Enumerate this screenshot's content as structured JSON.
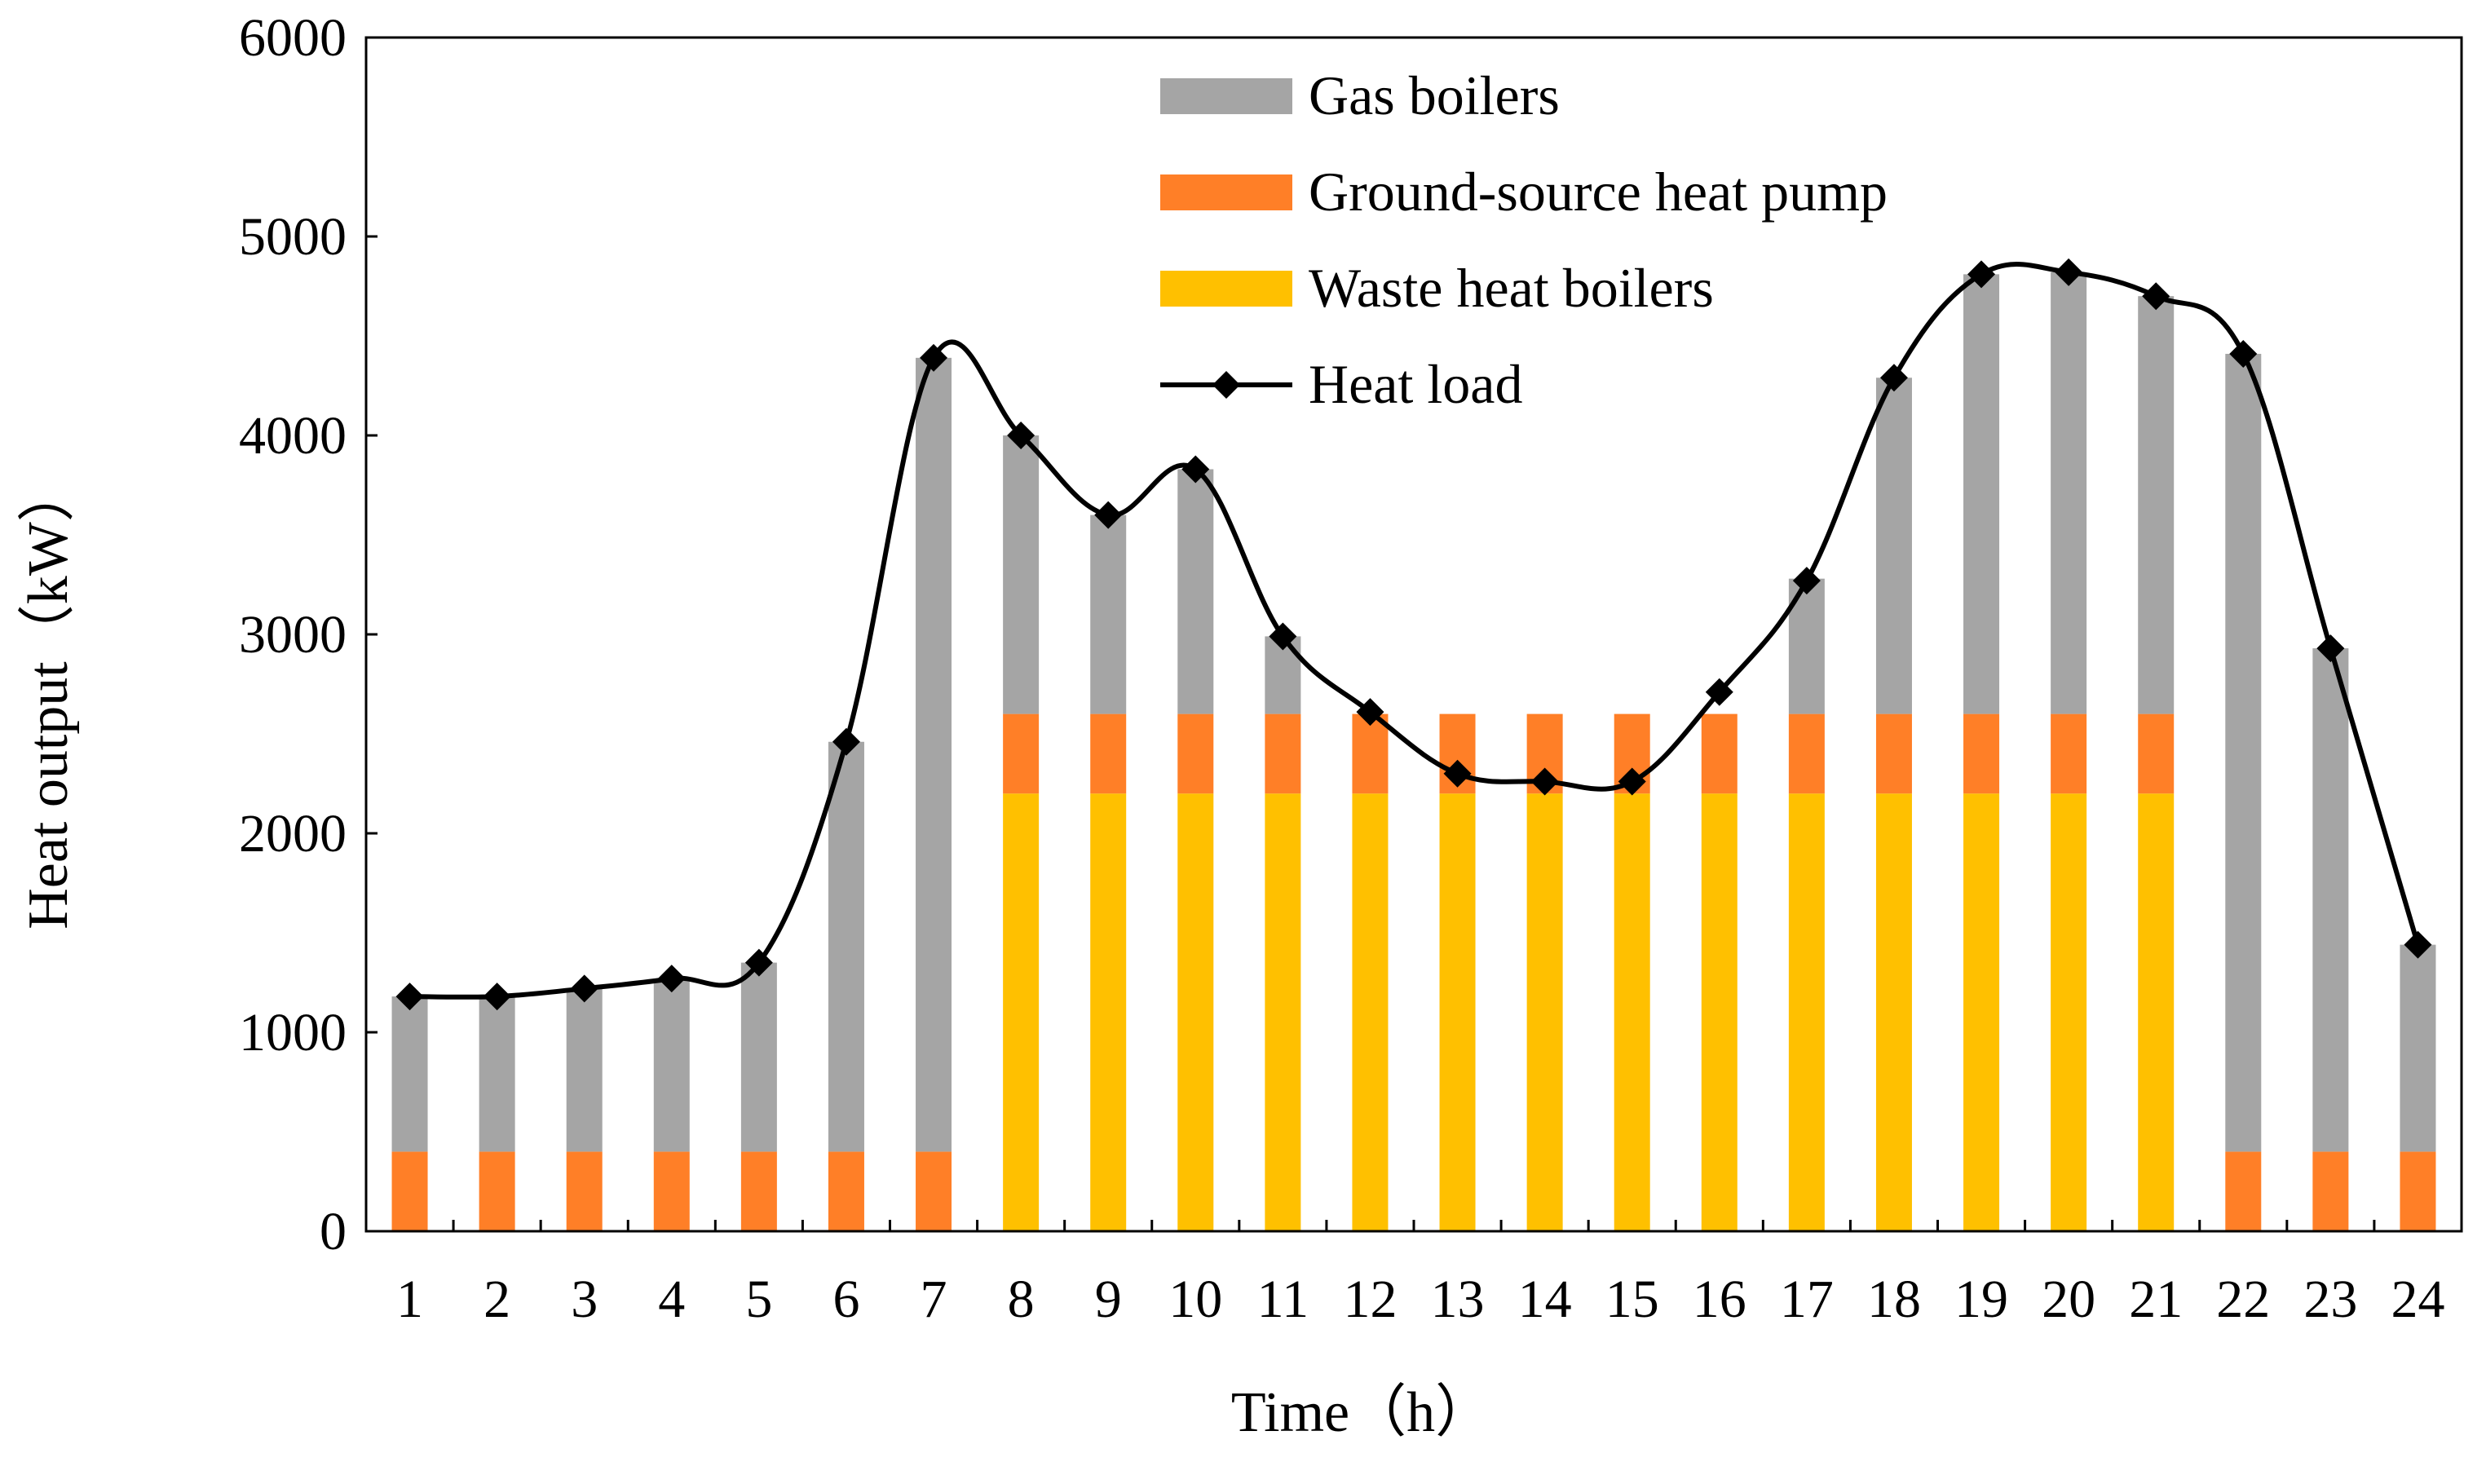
{
  "chart_data": {
    "type": "bar",
    "stacked": true,
    "title": "",
    "xlabel": "Time（h）",
    "ylabel": "Heat output（kW）",
    "ylim": [
      0,
      6000
    ],
    "yticks": [
      0,
      1000,
      2000,
      3000,
      4000,
      5000,
      6000
    ],
    "categories": [
      "1",
      "2",
      "3",
      "4",
      "5",
      "6",
      "7",
      "8",
      "9",
      "10",
      "11",
      "12",
      "13",
      "14",
      "15",
      "16",
      "17",
      "18",
      "19",
      "20",
      "21",
      "22",
      "23",
      "24"
    ],
    "legend_position": "top-center",
    "series": [
      {
        "name": "Waste heat boilers",
        "kind": "bar",
        "color": "#FFC000",
        "values": [
          0,
          0,
          0,
          0,
          0,
          0,
          0,
          2200,
          2200,
          2200,
          2200,
          2200,
          2200,
          2200,
          2200,
          2200,
          2200,
          2200,
          2200,
          2200,
          2200,
          0,
          0,
          0
        ]
      },
      {
        "name": "Ground-source heat pump",
        "kind": "bar",
        "color": "#FF7F27",
        "values": [
          400,
          400,
          400,
          400,
          400,
          400,
          400,
          400,
          400,
          400,
          400,
          400,
          400,
          400,
          400,
          400,
          400,
          400,
          400,
          400,
          400,
          400,
          400,
          400
        ]
      },
      {
        "name": "Gas boilers",
        "kind": "bar",
        "color": "#A5A5A5",
        "values": [
          780,
          780,
          820,
          870,
          950,
          2060,
          3990,
          1400,
          1000,
          1230,
          390,
          0,
          0,
          0,
          0,
          0,
          680,
          1690,
          2210,
          2220,
          2100,
          4010,
          2530,
          1040
        ]
      },
      {
        "name": "Heat load",
        "kind": "line",
        "color": "#000000",
        "marker": "diamond",
        "values": [
          1180,
          1180,
          1220,
          1270,
          1350,
          2460,
          4390,
          4000,
          3600,
          3830,
          2990,
          2610,
          2300,
          2260,
          2260,
          2710,
          3270,
          4290,
          4810,
          4820,
          4700,
          4410,
          2930,
          1440
        ]
      }
    ],
    "legend_order": [
      "Gas boilers",
      "Ground-source heat pump",
      "Waste heat boilers",
      "Heat load"
    ]
  }
}
